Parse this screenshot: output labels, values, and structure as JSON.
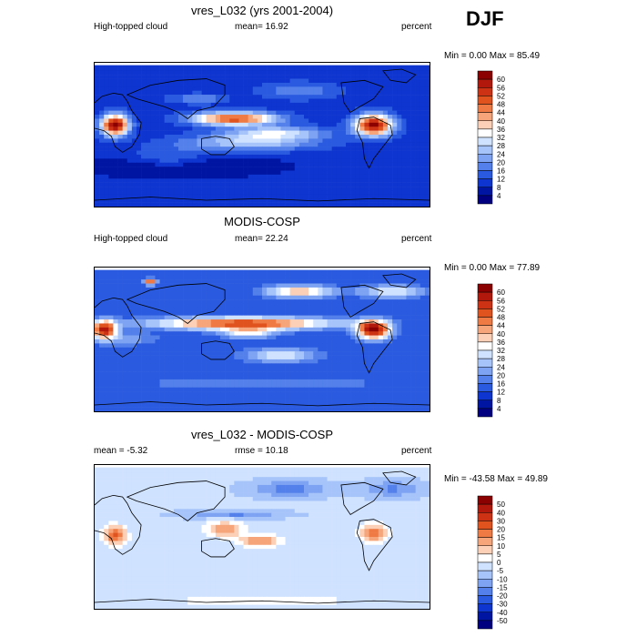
{
  "season": "DJF",
  "chart_data": [
    {
      "type": "heatmap",
      "title": "vres_L032 (yrs 2001-2004)",
      "left_label": "High-topped cloud",
      "stat_label": "mean=  16.92",
      "units": "percent",
      "minmax_label": "Min =   0.00 Max =  85.49",
      "min": 0.0,
      "max": 85.49,
      "mean": 16.92,
      "colorbar_levels": [
        "60",
        "56",
        "52",
        "48",
        "44",
        "40",
        "36",
        "32",
        "28",
        "24",
        "20",
        "16",
        "12",
        "8",
        "4"
      ],
      "colorbar_colors": [
        "#8b0000",
        "#b2180b",
        "#cd3214",
        "#e0531f",
        "#ef7a44",
        "#f6a57a",
        "#fbd0b6",
        "#ffffff",
        "#cfe2ff",
        "#a7c4fa",
        "#7ea3f2",
        "#5380ea",
        "#2a5adf",
        "#0e35cf",
        "#0016a3",
        "#000080"
      ]
    },
    {
      "type": "heatmap",
      "title": "MODIS-COSP",
      "left_label": "High-topped cloud",
      "stat_label": "mean=  22.24",
      "units": "percent",
      "minmax_label": "Min =   0.00 Max =  77.89",
      "min": 0.0,
      "max": 77.89,
      "mean": 22.24,
      "colorbar_levels": [
        "60",
        "56",
        "52",
        "48",
        "44",
        "40",
        "36",
        "32",
        "28",
        "24",
        "20",
        "16",
        "12",
        "8",
        "4"
      ],
      "colorbar_colors": [
        "#8b0000",
        "#b2180b",
        "#cd3214",
        "#e0531f",
        "#ef7a44",
        "#f6a57a",
        "#fbd0b6",
        "#ffffff",
        "#cfe2ff",
        "#a7c4fa",
        "#7ea3f2",
        "#5380ea",
        "#2a5adf",
        "#0e35cf",
        "#0016a3",
        "#000080"
      ]
    },
    {
      "type": "heatmap",
      "title": "vres_L032 - MODIS-COSP",
      "left_label": "mean =  -5.32",
      "stat_label": "rmse =  10.18",
      "units": "percent",
      "minmax_label": "Min = -43.58 Max =  49.89",
      "min": -43.58,
      "max": 49.89,
      "mean": -5.32,
      "rmse": 10.18,
      "colorbar_levels": [
        "50",
        "40",
        "30",
        "20",
        "15",
        "10",
        "5",
        "0",
        "-5",
        "-10",
        "-15",
        "-20",
        "-30",
        "-40",
        "-50"
      ],
      "colorbar_colors": [
        "#8b0000",
        "#b2180b",
        "#cd3214",
        "#e0531f",
        "#ef7a44",
        "#f6a57a",
        "#fbd0b6",
        "#ffffff",
        "#cfe2ff",
        "#a7c4fa",
        "#7ea3f2",
        "#5380ea",
        "#2a5adf",
        "#0e35cf",
        "#0016a3",
        "#000080"
      ]
    }
  ]
}
